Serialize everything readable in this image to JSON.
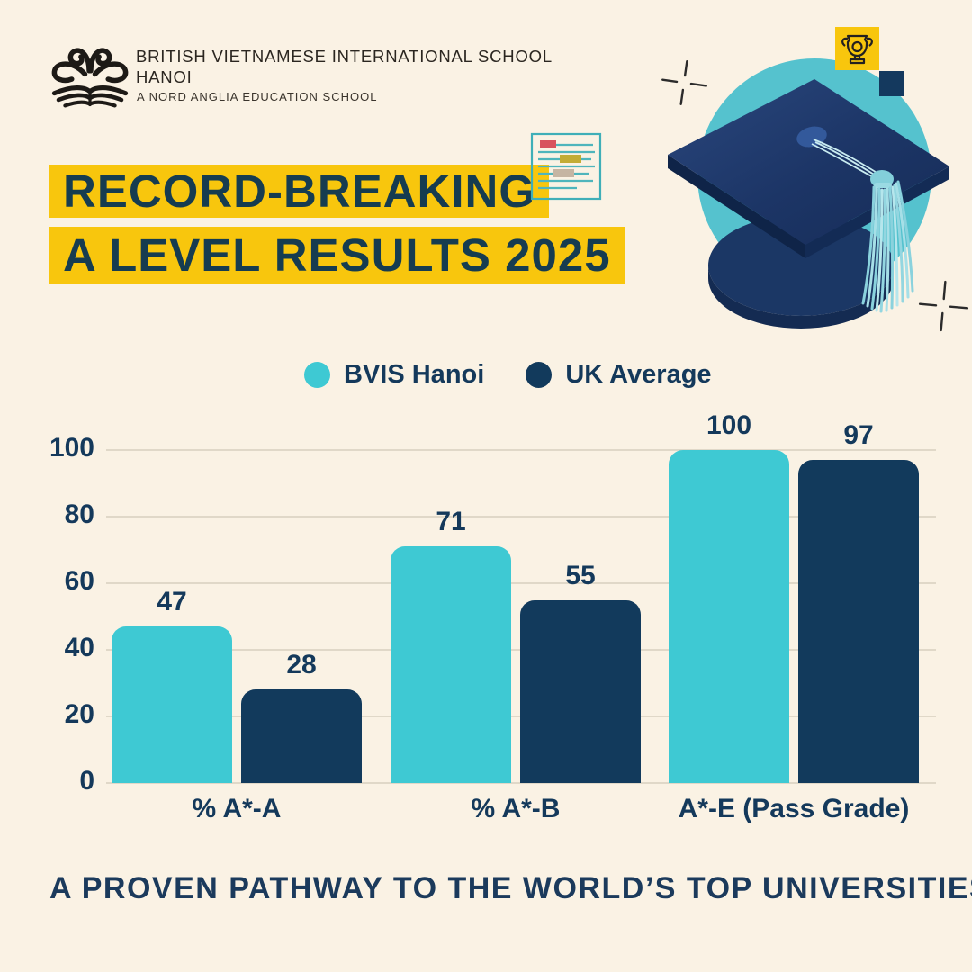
{
  "colors": {
    "background": "#FAF2E4",
    "teal": "#3EC9D3",
    "navy": "#123A5C",
    "yellow_highlight": "#F8C60D",
    "text_navy": "#14395B",
    "gridline": "#E0D8C8",
    "hero_circle_teal": "#55C2CE",
    "tassel_teal": "#A6DFE7",
    "logo_black": "#1D1A16"
  },
  "header": {
    "school_name_line1": "BRITISH VIETNAMESE INTERNATIONAL SCHOOL",
    "school_name_line2": "HANOI",
    "school_tagline": "A NORD ANGLIA EDUCATION SCHOOL"
  },
  "title": {
    "line1": "RECORD-BREAKING",
    "line2": "A LEVEL RESULTS 2025"
  },
  "hero_icons": {
    "trophy_icon": "trophy-in-yellow-square",
    "navy_square": "navy-accent-square",
    "document_icon": "document-with-highlighted-lines",
    "sparkles": "plus-sparkle-marks",
    "graduation_cap": "navy-mortarboard-with-teal-tassel"
  },
  "legend": [
    {
      "label": "BVIS Hanoi",
      "color": "#3EC9D3"
    },
    {
      "label": "UK Average",
      "color": "#123A5C"
    }
  ],
  "chart_data": {
    "type": "bar",
    "categories": [
      "% A*-A",
      "% A*-B",
      "A*-E (Pass Grade)"
    ],
    "series": [
      {
        "name": "BVIS Hanoi",
        "color": "#3EC9D3",
        "values": [
          47,
          71,
          100
        ]
      },
      {
        "name": "UK Average",
        "color": "#123A5C",
        "values": [
          28,
          55,
          97
        ]
      }
    ],
    "title": "",
    "xlabel": "",
    "ylabel": "",
    "ylim": [
      0,
      100
    ],
    "yticks": [
      0,
      20,
      40,
      60,
      80,
      100
    ],
    "grid": true,
    "legend_position": "top",
    "value_labels": true
  },
  "footer": {
    "headline": "A PROVEN PATHWAY TO THE WORLD’S TOP UNIVERSITIES"
  }
}
